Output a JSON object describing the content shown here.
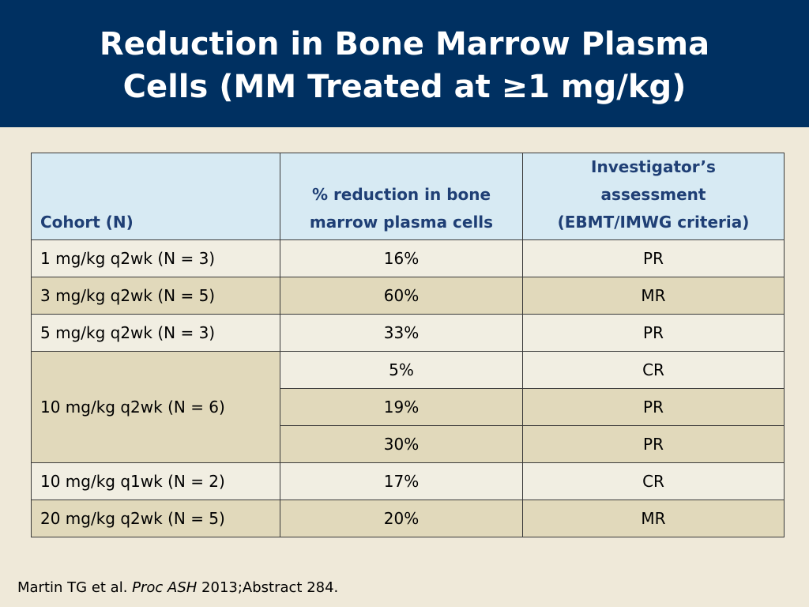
{
  "title": {
    "line1": "Reduction in Bone Marrow Plasma",
    "line2": "Cells (MM Treated at ≥1 mg/kg)"
  },
  "table": {
    "headers": [
      "Cohort (N)",
      "% reduction in bone marrow plasma cells",
      "Investigator’s assessment (EBMT/IMWG criteria)"
    ],
    "header_lines": {
      "col1": [
        "% reduction in bone",
        "marrow plasma cells"
      ],
      "col2": [
        "Investigator’s",
        "assessment",
        "(EBMT/IMWG criteria)"
      ]
    },
    "rows": [
      {
        "cohort": "1 mg/kg q2wk (N = 3)",
        "reduction": "16%",
        "assessment": "PR"
      },
      {
        "cohort": "3 mg/kg q2wk (N = 5)",
        "reduction": "60%",
        "assessment": "MR"
      },
      {
        "cohort": "5 mg/kg q2wk (N = 3)",
        "reduction": "33%",
        "assessment": "PR"
      },
      {
        "cohort": "10 mg/kg q2wk (N = 6)",
        "reduction": "5%",
        "assessment": "CR"
      },
      {
        "cohort": "",
        "reduction": "19%",
        "assessment": "PR"
      },
      {
        "cohort": "",
        "reduction": "30%",
        "assessment": "PR"
      },
      {
        "cohort": "10 mg/kg q1wk (N = 2)",
        "reduction": "17%",
        "assessment": "CR"
      },
      {
        "cohort": "20 mg/kg q2wk (N = 5)",
        "reduction": "20%",
        "assessment": "MR"
      }
    ]
  },
  "footer": {
    "authors": "Martin TG et al. ",
    "journal": "Proc ASH",
    "rest": " 2013;Abstract 284."
  },
  "colors": {
    "title_bg": "#003061",
    "slide_bg": "#efe9d9",
    "header_bg": "#d7eaf3",
    "header_text": "#1f3f75",
    "row_light": "#f1eee2",
    "row_dark": "#e1d9bb"
  }
}
